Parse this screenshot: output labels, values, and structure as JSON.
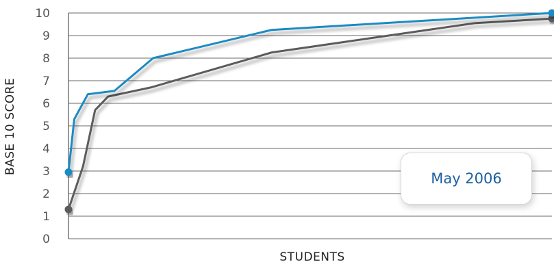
{
  "chart_data": {
    "type": "line",
    "ylabel": "BASE 10 SCORE",
    "xlabel": "STUDENTS",
    "ylim": [
      0,
      10
    ],
    "yticks": [
      0,
      1,
      2,
      3,
      4,
      5,
      6,
      7,
      8,
      9,
      10
    ],
    "grid": true,
    "annotation": "May 2006",
    "series": [
      {
        "color": "#1e8bc3",
        "x": [
          0,
          0.012,
          0.04,
          0.095,
          0.175,
          0.42,
          1.0
        ],
        "y": [
          2.95,
          5.3,
          6.4,
          6.55,
          8.0,
          9.25,
          10.0
        ]
      },
      {
        "color": "#5c5c5c",
        "x": [
          0,
          0.03,
          0.055,
          0.082,
          0.17,
          0.42,
          0.84,
          1.0
        ],
        "y": [
          1.3,
          3.2,
          5.7,
          6.3,
          6.7,
          8.25,
          9.55,
          9.75
        ]
      }
    ]
  }
}
